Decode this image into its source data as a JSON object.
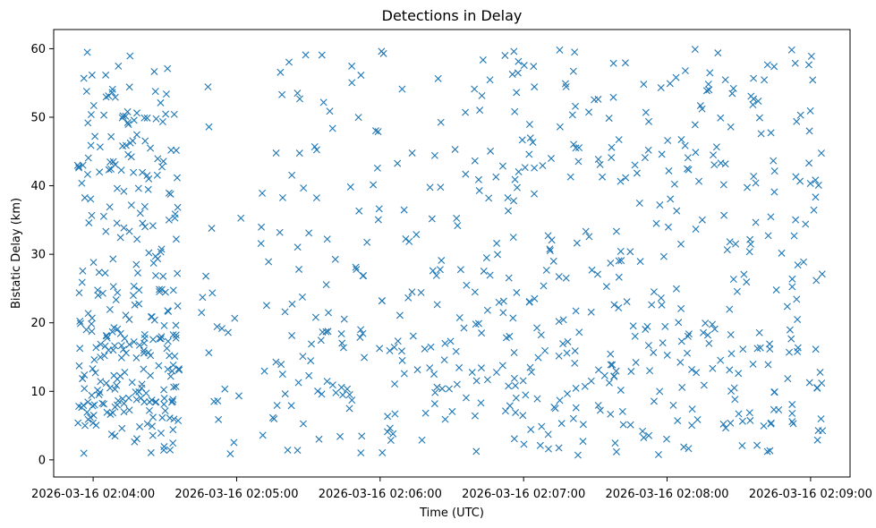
{
  "chart_data": {
    "type": "scatter",
    "title": "Detections in Delay",
    "xlabel": "Time (UTC)",
    "ylabel": "Bistatic Delay (km)",
    "marker": "x",
    "color": "#1f77b4",
    "xlim_seconds": [
      -16.5,
      316.5
    ],
    "ylim": [
      -2.5,
      62.8
    ],
    "x_ticks": [
      {
        "t": 0,
        "label": "2026-03-16 02:04:00"
      },
      {
        "t": 60,
        "label": "2026-03-16 02:05:00"
      },
      {
        "t": 120,
        "label": "2026-03-16 02:06:00"
      },
      {
        "t": 180,
        "label": "2026-03-16 02:07:00"
      },
      {
        "t": 240,
        "label": "2026-03-16 02:08:00"
      },
      {
        "t": 300,
        "label": "2026-03-16 02:09:00"
      }
    ],
    "y_ticks": [
      0,
      10,
      20,
      30,
      40,
      50,
      60
    ],
    "point_count": 900,
    "segments": [
      {
        "t_start": -6.5,
        "t_end": 36,
        "points": 300
      },
      {
        "t_start": 43,
        "t_end": 63,
        "points": 20
      },
      {
        "t_start": 70,
        "t_end": 170,
        "points": 200
      },
      {
        "t_start": 171,
        "t_end": 288,
        "points": 330
      },
      {
        "t_start": 290,
        "t_end": 306,
        "points": 50
      }
    ],
    "y_range_of_points": [
      0.5,
      60
    ],
    "seed": 20260316
  }
}
